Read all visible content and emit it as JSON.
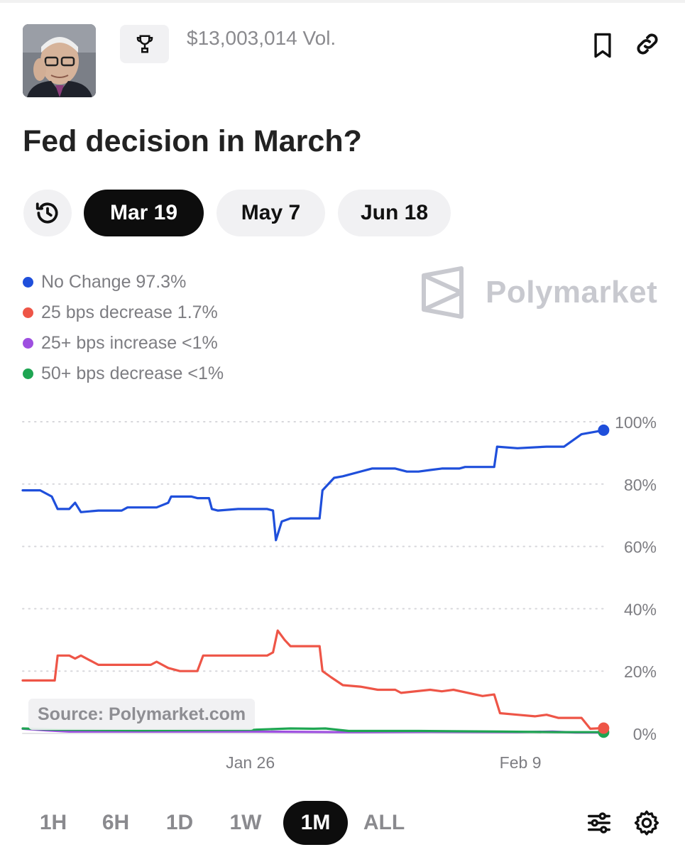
{
  "header": {
    "volume": "$13,003,014 Vol.",
    "icons": {
      "trophy": "trophy-icon",
      "bookmark": "bookmark-icon",
      "link": "link-icon"
    }
  },
  "market": {
    "title": "Fed decision in March?"
  },
  "date_tabs": [
    {
      "label": "Mar 19",
      "active": true
    },
    {
      "label": "May 7",
      "active": false
    },
    {
      "label": "Jun 18",
      "active": false
    }
  ],
  "legend": [
    {
      "label": "No Change 97.3%",
      "color": "#1f4fdb"
    },
    {
      "label": "25 bps decrease 1.7%",
      "color": "#ee5547"
    },
    {
      "label": "25+ bps increase <1%",
      "color": "#9e4fe0"
    },
    {
      "label": "50+ bps decrease <1%",
      "color": "#1ea552"
    }
  ],
  "brand": {
    "name": "Polymarket"
  },
  "source": "Source: Polymarket.com",
  "time_ranges": [
    {
      "label": "1H",
      "active": false
    },
    {
      "label": "6H",
      "active": false
    },
    {
      "label": "1D",
      "active": false
    },
    {
      "label": "1W",
      "active": false
    },
    {
      "label": "1M",
      "active": true
    },
    {
      "label": "ALL",
      "active": false
    }
  ],
  "chart_data": {
    "type": "line",
    "x_ticks": [
      "Jan 26",
      "Feb 9"
    ],
    "y_ticks": [
      "100%",
      "80%",
      "60%",
      "40%",
      "20%",
      "0%"
    ],
    "ylim": [
      0,
      100
    ],
    "grid": true,
    "series": [
      {
        "name": "No Change",
        "color": "#1f4fdb",
        "points": [
          [
            0,
            78
          ],
          [
            3,
            78
          ],
          [
            5,
            76
          ],
          [
            6,
            72
          ],
          [
            8,
            72
          ],
          [
            9,
            74
          ],
          [
            10,
            71
          ],
          [
            13,
            71.5
          ],
          [
            17,
            71.5
          ],
          [
            18,
            72.5
          ],
          [
            23,
            72.5
          ],
          [
            25,
            74
          ],
          [
            25.5,
            76
          ],
          [
            29,
            76
          ],
          [
            30,
            75.5
          ],
          [
            32,
            75.5
          ],
          [
            32.5,
            72
          ],
          [
            33.5,
            71.5
          ],
          [
            37,
            72
          ],
          [
            42,
            72
          ],
          [
            43,
            71.5
          ],
          [
            43.5,
            62
          ],
          [
            44.5,
            68
          ],
          [
            46,
            69
          ],
          [
            48.5,
            69
          ],
          [
            51,
            69
          ],
          [
            51.5,
            78
          ],
          [
            53.5,
            82
          ],
          [
            55,
            82.5
          ],
          [
            60,
            85
          ],
          [
            64,
            85
          ],
          [
            66,
            84
          ],
          [
            68,
            84
          ],
          [
            70,
            84.5
          ],
          [
            72,
            85
          ],
          [
            75,
            85
          ],
          [
            76,
            85.5
          ],
          [
            81,
            85.5
          ],
          [
            81.5,
            92
          ],
          [
            85,
            91.5
          ],
          [
            90,
            92
          ],
          [
            93,
            92
          ],
          [
            96,
            96
          ],
          [
            99,
            97
          ],
          [
            99.8,
            97.3
          ]
        ]
      },
      {
        "name": "25 bps decrease",
        "color": "#ee5547",
        "points": [
          [
            0,
            17
          ],
          [
            5.5,
            17
          ],
          [
            6,
            25
          ],
          [
            8,
            25
          ],
          [
            9,
            24
          ],
          [
            10,
            25
          ],
          [
            13,
            22
          ],
          [
            18,
            22
          ],
          [
            22,
            22
          ],
          [
            23,
            23
          ],
          [
            25,
            21
          ],
          [
            27,
            20
          ],
          [
            30,
            20
          ],
          [
            31,
            25
          ],
          [
            37,
            25
          ],
          [
            42,
            25
          ],
          [
            43,
            26
          ],
          [
            43.8,
            33
          ],
          [
            45,
            30
          ],
          [
            46,
            28
          ],
          [
            51,
            28
          ],
          [
            51.5,
            20
          ],
          [
            53,
            18
          ],
          [
            55,
            15.5
          ],
          [
            58,
            15
          ],
          [
            61,
            14
          ],
          [
            64,
            14
          ],
          [
            65,
            13
          ],
          [
            70,
            14
          ],
          [
            72,
            13.5
          ],
          [
            74,
            14
          ],
          [
            79,
            12
          ],
          [
            81,
            12.5
          ],
          [
            82,
            6.5
          ],
          [
            85,
            6
          ],
          [
            88,
            5.5
          ],
          [
            90,
            6
          ],
          [
            92,
            5
          ],
          [
            96,
            5
          ],
          [
            97.5,
            1.5
          ],
          [
            99.8,
            1.7
          ]
        ]
      },
      {
        "name": "25+ bps increase",
        "color": "#9e4fe0",
        "points": [
          [
            0,
            1.5
          ],
          [
            4,
            1
          ],
          [
            8,
            0.6
          ],
          [
            20,
            0.6
          ],
          [
            40,
            0.6
          ],
          [
            55,
            0.4
          ],
          [
            70,
            0.5
          ],
          [
            85,
            0.4
          ],
          [
            91,
            0.6
          ],
          [
            95,
            0.3
          ],
          [
            99.8,
            0.3
          ]
        ]
      },
      {
        "name": "50+ bps decrease",
        "color": "#1ea552",
        "points": [
          [
            0,
            1.6
          ],
          [
            6,
            1.2
          ],
          [
            20,
            1.0
          ],
          [
            40,
            1.2
          ],
          [
            46,
            1.6
          ],
          [
            50,
            1.5
          ],
          [
            52,
            1.6
          ],
          [
            56,
            0.8
          ],
          [
            68,
            0.8
          ],
          [
            82,
            0.6
          ],
          [
            92,
            0.4
          ],
          [
            99.8,
            0.4
          ]
        ]
      }
    ]
  }
}
